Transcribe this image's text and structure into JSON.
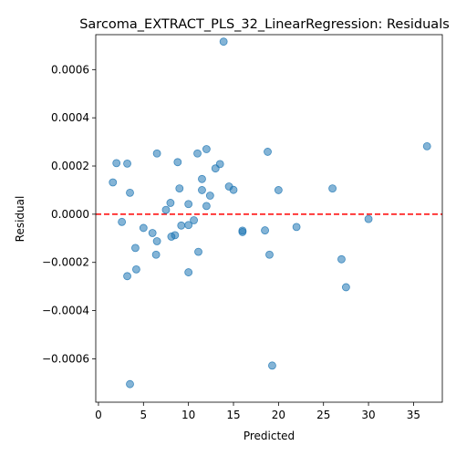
{
  "chart_data": {
    "type": "scatter",
    "title": "Sarcoma_EXTRACT_PLS_32_LinearRegression: Residuals",
    "xlabel": "Predicted",
    "ylabel": "Residual",
    "xlim": [
      -0.3,
      38.2
    ],
    "ylim": [
      -0.00078,
      0.000745
    ],
    "xticks": [
      0,
      5,
      10,
      15,
      20,
      25,
      30,
      35
    ],
    "xtick_labels": [
      "0",
      "5",
      "10",
      "15",
      "20",
      "25",
      "30",
      "35"
    ],
    "yticks": [
      -0.0006,
      -0.0004,
      -0.0002,
      0.0,
      0.0002,
      0.0004,
      0.0006
    ],
    "ytick_labels": [
      "−0.0006",
      "−0.0004",
      "−0.0002",
      "0.0000",
      "0.0002",
      "0.0004",
      "0.0006"
    ],
    "reference_line": {
      "y": 0,
      "style": "dashed",
      "color": "#ff0000"
    },
    "point_color": "#1f77b4",
    "point_alpha": 0.55,
    "grid": false,
    "points": [
      {
        "x": 1.6,
        "y": 0.000132
      },
      {
        "x": 2.0,
        "y": 0.000212
      },
      {
        "x": 2.6,
        "y": -3.2e-05
      },
      {
        "x": 3.2,
        "y": 0.00021
      },
      {
        "x": 3.5,
        "y": 8.9e-05
      },
      {
        "x": 3.2,
        "y": -0.000257
      },
      {
        "x": 3.5,
        "y": -0.000705
      },
      {
        "x": 4.1,
        "y": -0.00014
      },
      {
        "x": 4.2,
        "y": -0.000229
      },
      {
        "x": 5.0,
        "y": -5.7e-05
      },
      {
        "x": 6.0,
        "y": -7.8e-05
      },
      {
        "x": 6.5,
        "y": 0.000252
      },
      {
        "x": 6.5,
        "y": -0.000112
      },
      {
        "x": 6.4,
        "y": -0.000168
      },
      {
        "x": 7.5,
        "y": 1.8e-05
      },
      {
        "x": 8.0,
        "y": 4.7e-05
      },
      {
        "x": 8.1,
        "y": -9.3e-05
      },
      {
        "x": 8.5,
        "y": -8.7e-05
      },
      {
        "x": 8.8,
        "y": 0.000216
      },
      {
        "x": 9.0,
        "y": 0.000107
      },
      {
        "x": 9.2,
        "y": -4.7e-05
      },
      {
        "x": 10.0,
        "y": 4.2e-05
      },
      {
        "x": 10.0,
        "y": -4.5e-05
      },
      {
        "x": 10.0,
        "y": -0.000241
      },
      {
        "x": 10.6,
        "y": -2.5e-05
      },
      {
        "x": 11.0,
        "y": 0.000252
      },
      {
        "x": 11.1,
        "y": -0.000156
      },
      {
        "x": 11.5,
        "y": 0.000146
      },
      {
        "x": 11.5,
        "y": 0.0001
      },
      {
        "x": 12.0,
        "y": 0.00027
      },
      {
        "x": 12.0,
        "y": 3.4e-05
      },
      {
        "x": 12.4,
        "y": 7.7e-05
      },
      {
        "x": 13.0,
        "y": 0.00019
      },
      {
        "x": 13.5,
        "y": 0.000208
      },
      {
        "x": 13.9,
        "y": 0.000716
      },
      {
        "x": 14.5,
        "y": 0.000115
      },
      {
        "x": 15.0,
        "y": 0.000101
      },
      {
        "x": 16.0,
        "y": -6.8e-05
      },
      {
        "x": 16.0,
        "y": -7.4e-05
      },
      {
        "x": 18.5,
        "y": -6.7e-05
      },
      {
        "x": 18.8,
        "y": 0.000259
      },
      {
        "x": 19.0,
        "y": -0.000168
      },
      {
        "x": 19.3,
        "y": -0.000628
      },
      {
        "x": 20.0,
        "y": 0.0001
      },
      {
        "x": 22.0,
        "y": -5.3e-05
      },
      {
        "x": 26.0,
        "y": 0.000107
      },
      {
        "x": 27.0,
        "y": -0.000187
      },
      {
        "x": 27.5,
        "y": -0.000303
      },
      {
        "x": 30.0,
        "y": -2e-05
      },
      {
        "x": 36.5,
        "y": 0.000282
      }
    ]
  }
}
